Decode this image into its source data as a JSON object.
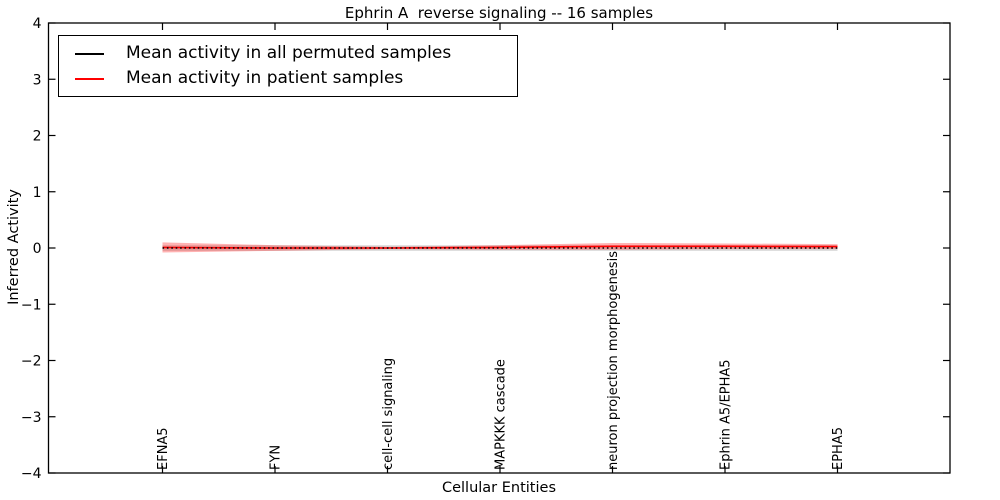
{
  "title": "Ephrin A  reverse signaling -- 16 samples",
  "legend": {
    "position": "upper left",
    "items": [
      {
        "label": "Mean activity in all permuted samples",
        "color": "#000000"
      },
      {
        "label": "Mean activity in patient samples",
        "color": "#ff0000"
      }
    ]
  },
  "chart_data": {
    "type": "line",
    "title": "Ephrin A  reverse signaling -- 16 samples",
    "xlabel": "Cellular Entities",
    "ylabel": "Inferred Activity",
    "ylim": [
      -4,
      4
    ],
    "yticks": [
      -4,
      -3,
      -2,
      -1,
      0,
      1,
      2,
      3,
      4
    ],
    "ytick_labels": [
      "−4",
      "−3",
      "−2",
      "−1",
      "0",
      "1",
      "2",
      "3",
      "4"
    ],
    "grid": false,
    "legend_position": "upper left",
    "categories": [
      "EFNA5",
      "FYN",
      "cell-cell signaling",
      "MAPKKK cascade",
      "neuron projection morphogenesis",
      "Ephrin A5/EPHA5",
      "EPHA5"
    ],
    "series": [
      {
        "name": "Mean activity in all permuted samples",
        "color": "#000000",
        "line_style": "dotted",
        "values": [
          0,
          0,
          0,
          0,
          0,
          0,
          0
        ],
        "band_halfwidth": [
          0.05,
          0.05,
          0.05,
          0.05,
          0.05,
          0.05,
          0.05
        ],
        "band_color": "rgba(130,130,130,0.30)"
      },
      {
        "name": "Mean activity in patient samples",
        "color": "#ff0000",
        "line_style": "solid",
        "values": [
          0.01,
          0.0,
          0.0,
          0.01,
          0.03,
          0.03,
          0.025
        ],
        "band_halfwidth": [
          0.09,
          0.05,
          0.02,
          0.04,
          0.06,
          0.05,
          0.045
        ],
        "band_color": "rgba(255,0,0,0.30)"
      }
    ]
  }
}
